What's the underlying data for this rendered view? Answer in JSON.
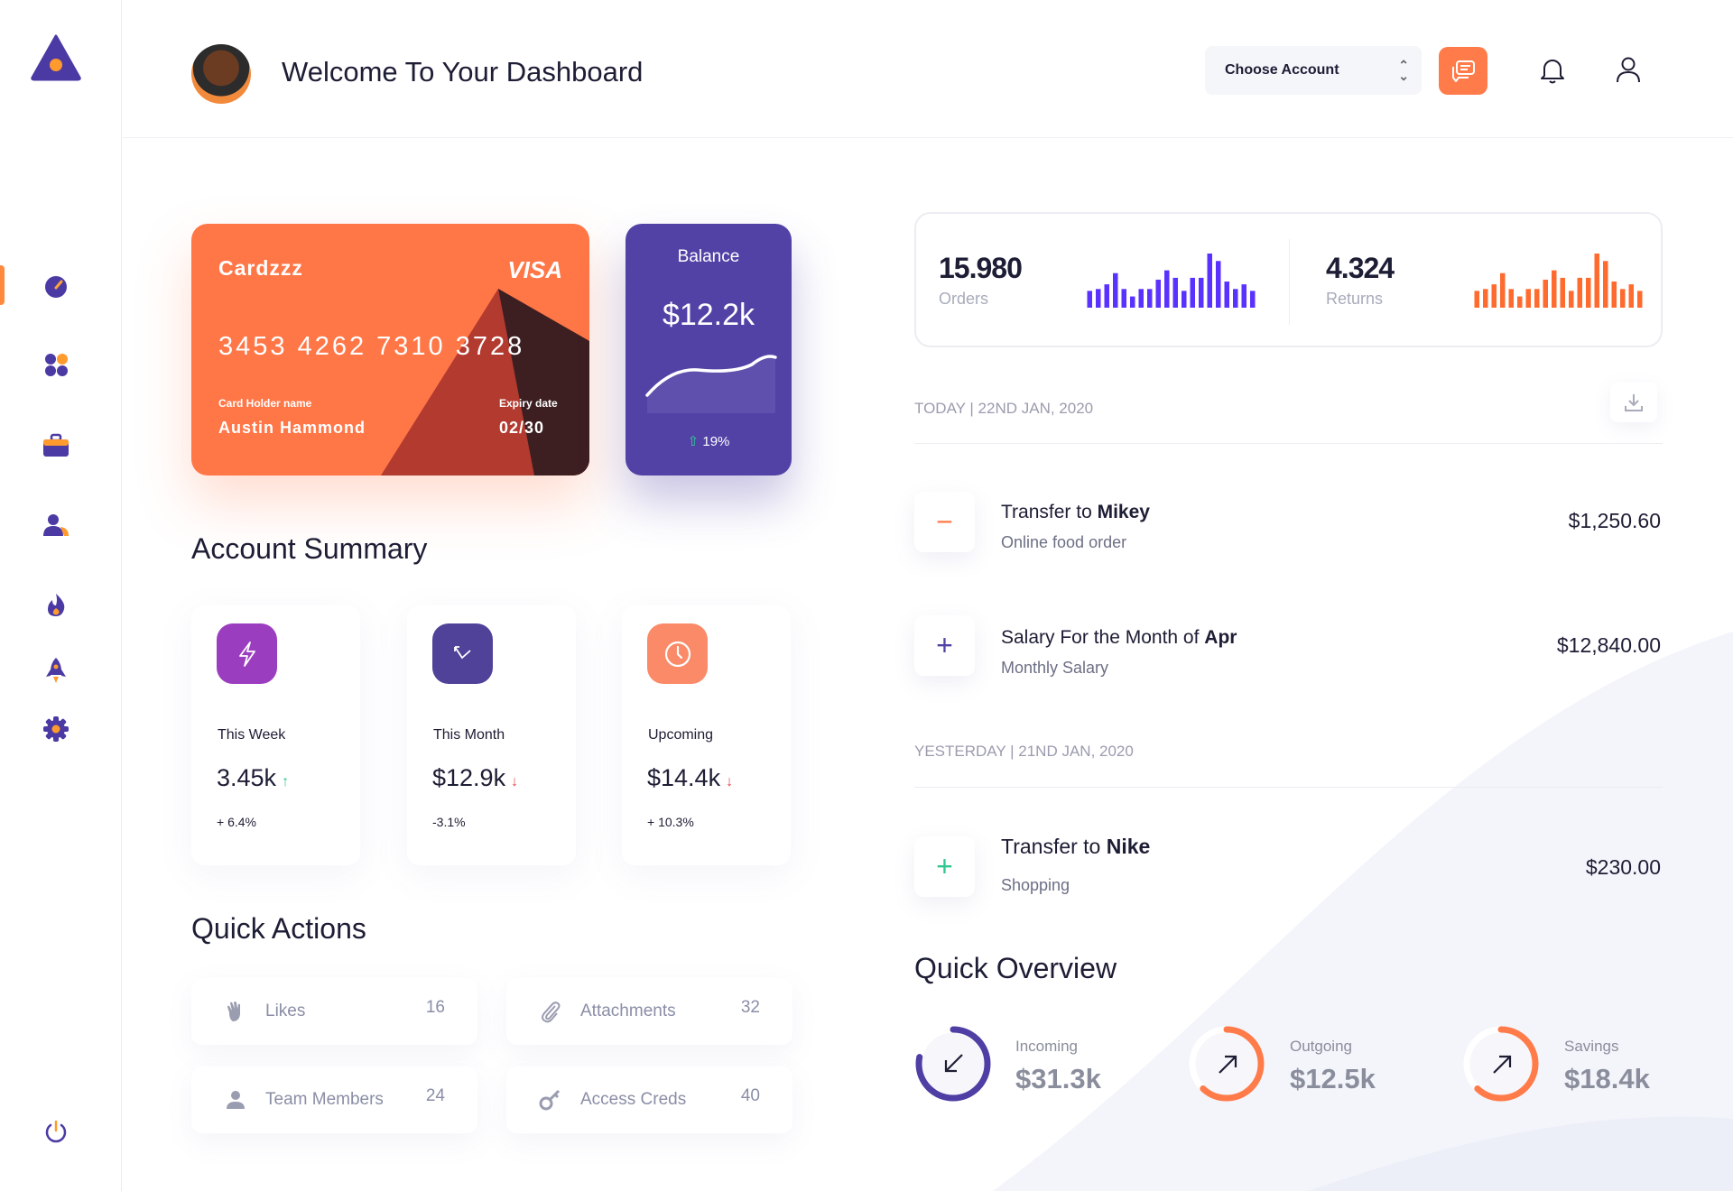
{
  "header": {
    "title": "Welcome To Your Dashboard",
    "account_select": {
      "value": "Choose Account"
    }
  },
  "sidebar": {
    "items": [
      {
        "icon": "dashboard-gauge-icon",
        "active": true
      },
      {
        "icon": "apps-grid-icon"
      },
      {
        "icon": "briefcase-icon"
      },
      {
        "icon": "users-icon"
      },
      {
        "icon": "fire-icon"
      },
      {
        "icon": "rocket-icon"
      },
      {
        "icon": "settings-gear-icon"
      }
    ],
    "logout_icon": "power-icon"
  },
  "card": {
    "brand": "Cardzzz",
    "network": "VISA",
    "number": "3453 4262 7310 3728",
    "holder_label": "Card Holder name",
    "holder": "Austin Hammond",
    "expiry_label": "Expiry date",
    "expiry": "02/30"
  },
  "balance": {
    "label": "Balance",
    "value": "$12.2k",
    "change": "19%"
  },
  "account_summary": {
    "title": "Account Summary",
    "cards": [
      {
        "label": "This Week",
        "value": "3.45k",
        "trend": "up",
        "change": "+ 6.4%",
        "color": "#9b3dbf",
        "icon": "lightning-icon"
      },
      {
        "label": "This Month",
        "value": "$12.9k",
        "trend": "down",
        "change": "-3.1%",
        "color": "#504199",
        "icon": "trend-arrow-icon"
      },
      {
        "label": "Upcoming",
        "value": "$14.4k",
        "trend": "down",
        "change": "+ 10.3%",
        "color": "#fa8a68",
        "icon": "clock-icon"
      }
    ]
  },
  "quick_actions": {
    "title": "Quick Actions",
    "items": [
      {
        "label": "Likes",
        "count": "16",
        "icon": "hand-wave-icon"
      },
      {
        "label": "Attachments",
        "count": "32",
        "icon": "paperclip-icon"
      },
      {
        "label": "Team Members",
        "count": "24",
        "icon": "user-icon"
      },
      {
        "label": "Access Creds",
        "count": "40",
        "icon": "key-icon"
      }
    ]
  },
  "stats": {
    "orders": {
      "value": "15.980",
      "label": "Orders",
      "color": "#5a32ff",
      "bars": [
        18,
        20,
        25,
        37,
        20,
        12,
        20,
        20,
        30,
        40,
        32,
        18,
        32,
        32,
        58,
        50,
        28,
        20,
        25,
        18
      ]
    },
    "returns": {
      "value": "4.324",
      "label": "Returns",
      "color": "#ff6a2e",
      "bars": [
        18,
        20,
        25,
        37,
        20,
        12,
        20,
        20,
        30,
        40,
        32,
        18,
        32,
        32,
        58,
        50,
        28,
        20,
        25,
        18
      ]
    }
  },
  "transactions": {
    "today_label": "TODAY | 22ND JAN, 2020",
    "yesterday_label": "YESTERDAY | 21ND JAN, 2020",
    "items": [
      {
        "title": "Transfer to",
        "name": "Mikey",
        "subtitle": "Online food order",
        "amount": "$1,250.60",
        "sign": "−",
        "color": "#ff7b4a"
      },
      {
        "title": "Salary For the Month of",
        "name": "Apr",
        "subtitle": "Monthly Salary",
        "amount": "$12,840.00",
        "sign": "+",
        "color": "#5242a6"
      },
      {
        "title": "Transfer to",
        "name": "Nike",
        "subtitle": "Shopping",
        "amount": "$230.00",
        "sign": "+",
        "color": "#2fc88f"
      }
    ]
  },
  "quick_overview": {
    "title": "Quick Overview",
    "items": [
      {
        "label": "Incoming",
        "value": "$31.3k",
        "progress": 0.78,
        "color": "#4f3ea3",
        "icon": "arrow-down-left-icon"
      },
      {
        "label": "Outgoing",
        "value": "$12.5k",
        "progress": 0.62,
        "color": "#ff7b4a",
        "icon": "arrow-up-right-icon"
      },
      {
        "label": "Savings",
        "value": "$18.4k",
        "progress": 0.62,
        "color": "#ff7b4a",
        "icon": "arrow-up-right-icon"
      }
    ]
  }
}
